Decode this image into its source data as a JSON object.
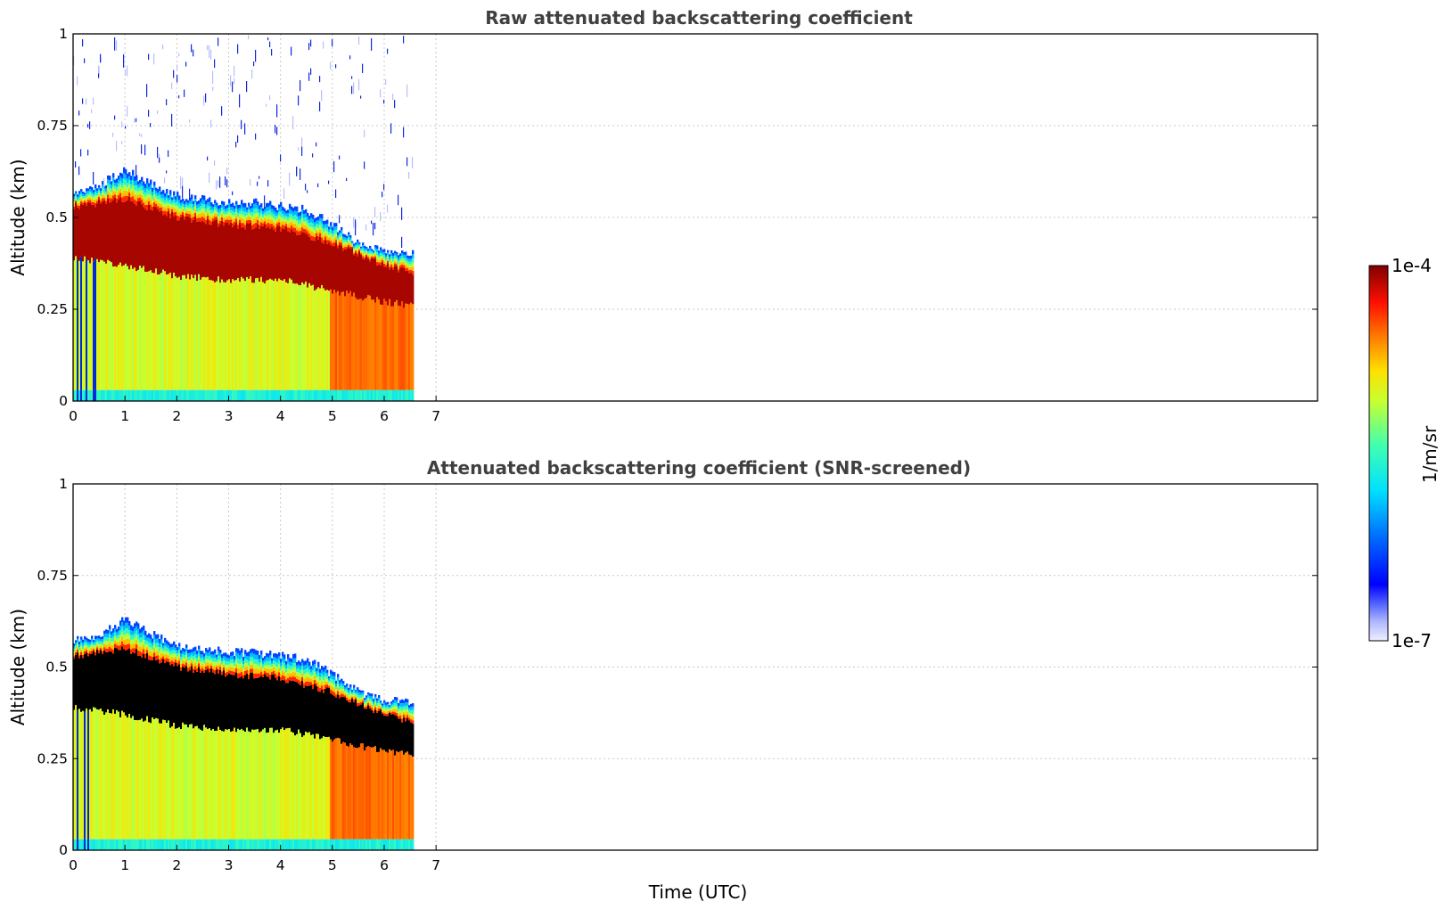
{
  "chart_data": [
    {
      "type": "heatmap",
      "title": "Raw attenuated backscattering coefficient",
      "xlabel": "",
      "ylabel": "Altitude (km)",
      "xlim": [
        0,
        24
      ],
      "ylim": [
        0,
        1
      ],
      "x_ticks": [
        "0",
        "1",
        "2",
        "3",
        "4",
        "5",
        "6",
        "7"
      ],
      "y_ticks": [
        "0",
        "0.25",
        "0.5",
        "0.75",
        "1"
      ],
      "grid": true,
      "data_time_range_utc": [
        0,
        6.55
      ],
      "layer_top_km": [
        {
          "x": 0.0,
          "y": 0.57
        },
        {
          "x": 0.5,
          "y": 0.59
        },
        {
          "x": 1.0,
          "y": 0.63
        },
        {
          "x": 1.5,
          "y": 0.59
        },
        {
          "x": 2.0,
          "y": 0.56
        },
        {
          "x": 2.5,
          "y": 0.55
        },
        {
          "x": 3.0,
          "y": 0.54
        },
        {
          "x": 3.5,
          "y": 0.54
        },
        {
          "x": 4.0,
          "y": 0.53
        },
        {
          "x": 4.5,
          "y": 0.52
        },
        {
          "x": 5.0,
          "y": 0.48
        },
        {
          "x": 5.5,
          "y": 0.43
        },
        {
          "x": 6.0,
          "y": 0.41
        },
        {
          "x": 6.5,
          "y": 0.4
        }
      ],
      "layer_core_km": [
        {
          "x": 0.0,
          "y": [
            0.39,
            0.53
          ]
        },
        {
          "x": 1.0,
          "y": [
            0.37,
            0.55
          ]
        },
        {
          "x": 2.0,
          "y": [
            0.34,
            0.5
          ]
        },
        {
          "x": 3.0,
          "y": [
            0.33,
            0.48
          ]
        },
        {
          "x": 4.0,
          "y": [
            0.33,
            0.47
          ]
        },
        {
          "x": 5.0,
          "y": [
            0.3,
            0.43
          ]
        },
        {
          "x": 6.0,
          "y": [
            0.27,
            0.37
          ]
        },
        {
          "x": 6.5,
          "y": [
            0.26,
            0.35
          ]
        }
      ],
      "noise_above_layer": true
    },
    {
      "type": "heatmap",
      "title": "Attenuated backscattering coefficient (SNR-screened)",
      "xlabel": "Time (UTC)",
      "ylabel": "Altitude (km)",
      "xlim": [
        0,
        24
      ],
      "ylim": [
        0,
        1
      ],
      "x_ticks": [
        "0",
        "1",
        "2",
        "3",
        "4",
        "5",
        "6",
        "7"
      ],
      "y_ticks": [
        "0",
        "0.25",
        "0.5",
        "0.75",
        "1"
      ],
      "grid": true,
      "data_time_range_utc": [
        0,
        6.55
      ],
      "screened_color": "#000000",
      "noise_above_layer": false
    }
  ],
  "colorbar": {
    "label": "1/m/sr",
    "min_label": "1e-7",
    "max_label": "1e-4",
    "scale": "log",
    "colormap": "jet"
  },
  "colors": {
    "grid": "#c8c8c8",
    "axis": "#000000",
    "title": "#404040",
    "layer_core": "#8b0000",
    "low_level": "#9ae94e",
    "high_level": "#ff5a00"
  }
}
